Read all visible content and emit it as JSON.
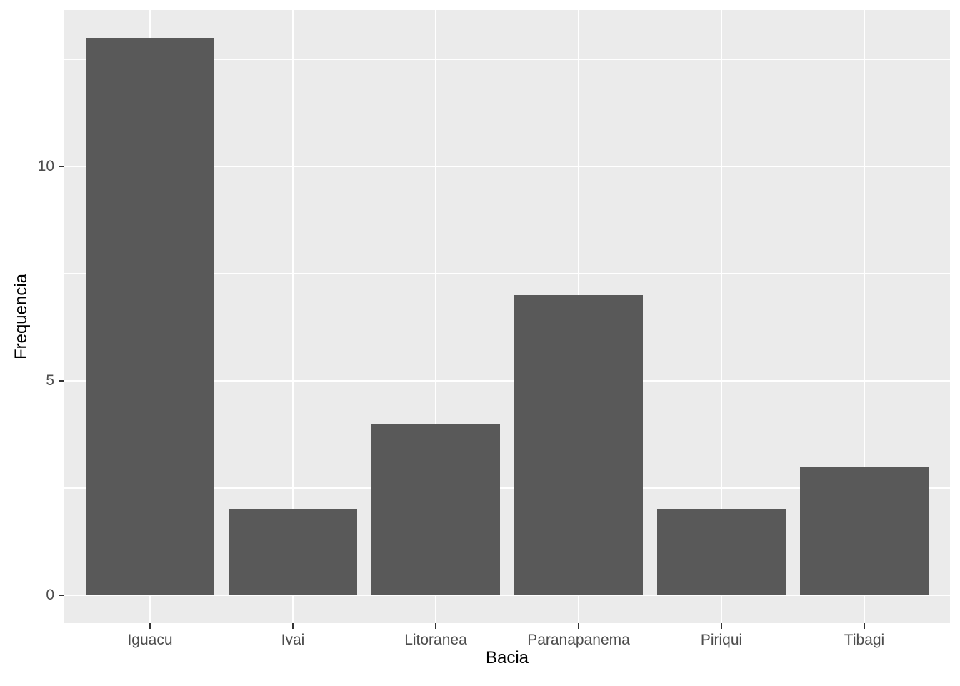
{
  "chart_data": {
    "type": "bar",
    "title": "",
    "categories": [
      "Iguacu",
      "Ivai",
      "Litoranea",
      "Paranapanema",
      "Piriqui",
      "Tibagi"
    ],
    "values": [
      13,
      2,
      4,
      7,
      2,
      3
    ],
    "xlabel": "Bacia",
    "ylabel": "Frequencia",
    "yticks": [
      0,
      5,
      10
    ],
    "y_minor_ticks": [
      2.5,
      7.5,
      12.5
    ],
    "ylim": [
      -0.65,
      13.65
    ],
    "bar_rel_width": 0.9,
    "x_expand": 0.6,
    "grid": "on",
    "legend": "none"
  },
  "colors": {
    "bar": "#595959",
    "panel_bg": "#EBEBEB",
    "grid": "#FFFFFF",
    "tick_label": "#4D4D4D",
    "tick_mark": "#333333",
    "axis_title": "#000000",
    "figure_bg": "#FFFFFF"
  }
}
